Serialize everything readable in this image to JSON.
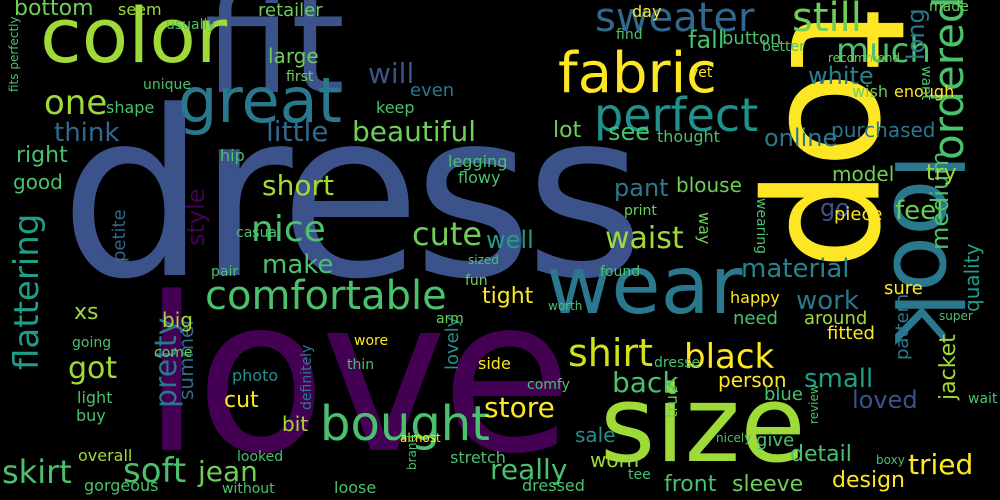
{
  "words": [
    {
      "text": "dress",
      "color": "#3b528b"
    },
    {
      "text": "love",
      "color": "#440154"
    },
    {
      "text": "fit",
      "color": "#3b528b"
    },
    {
      "text": "top",
      "color": "#fde725"
    },
    {
      "text": "size",
      "color": "#a0da39"
    },
    {
      "text": "color",
      "color": "#a0da39"
    },
    {
      "text": "wear",
      "color": "#2a788e"
    },
    {
      "text": "look",
      "color": "#2a788e"
    },
    {
      "text": "fabric",
      "color": "#fde725"
    },
    {
      "text": "great",
      "color": "#2a788e"
    },
    {
      "text": "comfortable",
      "color": "#4ac16d"
    },
    {
      "text": "bought",
      "color": "#4ac16d"
    },
    {
      "text": "perfect",
      "color": "#21918c"
    },
    {
      "text": "sweater",
      "color": "#31688e"
    },
    {
      "text": "still",
      "color": "#6ece58"
    },
    {
      "text": "much",
      "color": "#4ac16d"
    },
    {
      "text": "one",
      "color": "#a0da39"
    },
    {
      "text": "beautiful",
      "color": "#6ece58"
    },
    {
      "text": "shirt",
      "color": "#d0e11c"
    },
    {
      "text": "black",
      "color": "#fde725"
    },
    {
      "text": "soft",
      "color": "#4ac16d"
    },
    {
      "text": "ordered",
      "color": "#4ac16d"
    },
    {
      "text": "flattering",
      "color": "#1f9e89"
    },
    {
      "text": "nice",
      "color": "#4ac16d"
    },
    {
      "text": "cute",
      "color": "#6ece58"
    },
    {
      "text": "waist",
      "color": "#a0da39"
    },
    {
      "text": "skirt",
      "color": "#4ac16d"
    },
    {
      "text": "jacket",
      "color": "#a0da39"
    },
    {
      "text": "quality",
      "color": "#1f9e89"
    },
    {
      "text": "store",
      "color": "#fde725"
    },
    {
      "text": "tried",
      "color": "#fde725"
    },
    {
      "text": "really",
      "color": "#4ac16d"
    },
    {
      "text": "jean",
      "color": "#6ece58"
    },
    {
      "text": "will",
      "color": "#3b528b"
    },
    {
      "text": "think",
      "color": "#31688e"
    },
    {
      "text": "little",
      "color": "#31688e"
    },
    {
      "text": "material",
      "color": "#26828e"
    },
    {
      "text": "work",
      "color": "#2a788e"
    },
    {
      "text": "got",
      "color": "#a0da39"
    },
    {
      "text": "pretty",
      "color": "#2a788e"
    },
    {
      "text": "short",
      "color": "#a0da39"
    },
    {
      "text": "make",
      "color": "#4ac16d"
    },
    {
      "text": "back",
      "color": "#4ac16d"
    },
    {
      "text": "person",
      "color": "#fde725"
    },
    {
      "text": "small",
      "color": "#1f9e89"
    },
    {
      "text": "front",
      "color": "#4ac16d"
    },
    {
      "text": "sleeve",
      "color": "#6ece58"
    },
    {
      "text": "design",
      "color": "#fde725"
    },
    {
      "text": "detail",
      "color": "#4ac16d"
    },
    {
      "text": "loved",
      "color": "#3b528b"
    },
    {
      "text": "right",
      "color": "#4ac16d"
    },
    {
      "text": "bottom",
      "color": "#6ece58"
    },
    {
      "text": "white",
      "color": "#26828e"
    },
    {
      "text": "feel",
      "color": "#6ece58"
    },
    {
      "text": "long",
      "color": "#2a788e"
    },
    {
      "text": "medium",
      "color": "#4ac16d"
    },
    {
      "text": "fall",
      "color": "#4ac16d"
    },
    {
      "text": "well",
      "color": "#1f9e89"
    },
    {
      "text": "see",
      "color": "#4ac16d"
    },
    {
      "text": "lot",
      "color": "#6ece58"
    },
    {
      "text": "online",
      "color": "#2a788e"
    },
    {
      "text": "purchased",
      "color": "#2a788e"
    },
    {
      "text": "model",
      "color": "#6ece58"
    },
    {
      "text": "try",
      "color": "#a0da39"
    },
    {
      "text": "go",
      "color": "#3b528b"
    },
    {
      "text": "pant",
      "color": "#2a788e"
    },
    {
      "text": "blouse",
      "color": "#6ece58"
    },
    {
      "text": "style",
      "color": "#440154"
    },
    {
      "text": "summer",
      "color": "#31688e"
    },
    {
      "text": "petite",
      "color": "#31688e"
    },
    {
      "text": "tight",
      "color": "#fde725"
    },
    {
      "text": "xs",
      "color": "#a0da39"
    },
    {
      "text": "big",
      "color": "#a0da39"
    },
    {
      "text": "cut",
      "color": "#fde725"
    },
    {
      "text": "bit",
      "color": "#a0da39"
    },
    {
      "text": "good",
      "color": "#4ac16d"
    },
    {
      "text": "sale",
      "color": "#21918c"
    },
    {
      "text": "worn",
      "color": "#a0da39"
    },
    {
      "text": "happy",
      "color": "#fde725"
    },
    {
      "text": "need",
      "color": "#4ac16d"
    },
    {
      "text": "around",
      "color": "#a0da39"
    },
    {
      "text": "fitted",
      "color": "#fde725"
    },
    {
      "text": "blue",
      "color": "#4ac16d"
    },
    {
      "text": "give",
      "color": "#4ac16d"
    },
    {
      "text": "pattern",
      "color": "#2a788e"
    },
    {
      "text": "sure",
      "color": "#fde725"
    },
    {
      "text": "piece",
      "color": "#fde725"
    },
    {
      "text": "enough",
      "color": "#fde725"
    },
    {
      "text": "hip",
      "color": "#4ac16d"
    },
    {
      "text": "keep",
      "color": "#4ac16d"
    },
    {
      "text": "even",
      "color": "#2a788e"
    },
    {
      "text": "button",
      "color": "#4ac16d"
    },
    {
      "text": "find",
      "color": "#4ac16d"
    },
    {
      "text": "day",
      "color": "#fde725"
    },
    {
      "text": "large",
      "color": "#6ece58"
    },
    {
      "text": "retailer",
      "color": "#6ece58"
    },
    {
      "text": "usually",
      "color": "#4ac16d"
    },
    {
      "text": "seem",
      "color": "#a0da39"
    },
    {
      "text": "shape",
      "color": "#4ac16d"
    },
    {
      "text": "unique",
      "color": "#4ac16d"
    },
    {
      "text": "first",
      "color": "#6ece58"
    },
    {
      "text": "wish",
      "color": "#6ece58"
    },
    {
      "text": "thought",
      "color": "#4ac16d"
    },
    {
      "text": "light",
      "color": "#4ac16d"
    },
    {
      "text": "buy",
      "color": "#4ac16d"
    },
    {
      "text": "overall",
      "color": "#a0da39"
    },
    {
      "text": "gorgeous",
      "color": "#4ac16d"
    },
    {
      "text": "without",
      "color": "#4ac16d"
    },
    {
      "text": "looked",
      "color": "#4ac16d"
    },
    {
      "text": "loose",
      "color": "#4ac16d"
    },
    {
      "text": "almost",
      "color": "#fde725"
    },
    {
      "text": "stretch",
      "color": "#4ac16d"
    },
    {
      "text": "comfy",
      "color": "#4ac16d"
    },
    {
      "text": "casual",
      "color": "#4ac16d"
    },
    {
      "text": "photo",
      "color": "#21918c"
    },
    {
      "text": "going",
      "color": "#4ac16d"
    },
    {
      "text": "fun",
      "color": "#6ece58"
    },
    {
      "text": "lovely",
      "color": "#21918c"
    },
    {
      "text": "side",
      "color": "#fde725"
    },
    {
      "text": "wore",
      "color": "#fde725"
    },
    {
      "text": "thin",
      "color": "#4ac16d"
    },
    {
      "text": "found",
      "color": "#4ac16d"
    },
    {
      "text": "pair",
      "color": "#4ac16d"
    },
    {
      "text": "true",
      "color": "#6ece58"
    },
    {
      "text": "way",
      "color": "#6ece58"
    },
    {
      "text": "wearing",
      "color": "#4ac16d"
    },
    {
      "text": "definitely",
      "color": "#2a788e"
    },
    {
      "text": "dresse",
      "color": "#4ac16d"
    },
    {
      "text": "come",
      "color": "#6ece58"
    },
    {
      "text": "dressed",
      "color": "#4ac16d"
    },
    {
      "text": "arm",
      "color": "#6ece58"
    },
    {
      "text": "print",
      "color": "#6ece58"
    },
    {
      "text": "made",
      "color": "#6ece58"
    },
    {
      "text": "want",
      "color": "#4ac16d"
    },
    {
      "text": "better",
      "color": "#4ac16d"
    },
    {
      "text": "recommend",
      "color": "#6ece58"
    },
    {
      "text": "yet",
      "color": "#fde725"
    },
    {
      "text": "sized",
      "color": "#4ac16d"
    },
    {
      "text": "fits perfectly",
      "color": "#4ac16d"
    },
    {
      "text": "legging",
      "color": "#4ac16d"
    },
    {
      "text": "flowy",
      "color": "#4ac16d"
    },
    {
      "text": "wait",
      "color": "#4ac16d"
    },
    {
      "text": "super",
      "color": "#4ac16d"
    },
    {
      "text": "tee",
      "color": "#4ac16d"
    },
    {
      "text": "boxy",
      "color": "#4ac16d"
    },
    {
      "text": "review",
      "color": "#4ac16d"
    },
    {
      "text": "brand",
      "color": "#4ac16d"
    },
    {
      "text": "nicely",
      "color": "#4ac16d"
    },
    {
      "text": "worth",
      "color": "#4ac16d"
    }
  ]
}
